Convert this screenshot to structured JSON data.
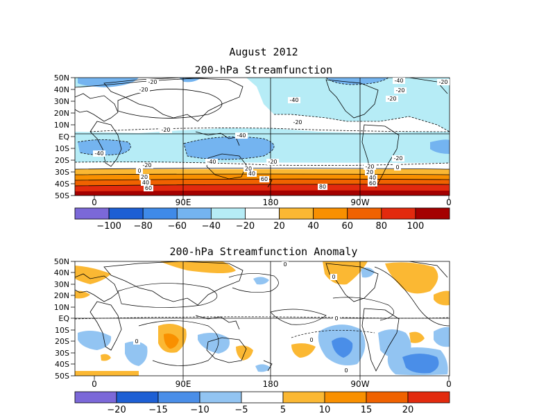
{
  "header": {
    "date": "August 2012",
    "panel1_title": "200-hPa Streamfunction",
    "panel2_title": "200-hPa Streamfunction Anomaly"
  },
  "axes": {
    "lat_labels": [
      "50N",
      "40N",
      "30N",
      "20N",
      "10N",
      "EQ",
      "10S",
      "20S",
      "30S",
      "40S",
      "50S"
    ],
    "lon_labels": [
      "0",
      "90E",
      "180",
      "90W",
      "0"
    ]
  },
  "panel1": {
    "colorbar": {
      "labels": [
        "-100",
        "-80",
        "-60",
        "-40",
        "-20",
        "20",
        "40",
        "60",
        "80",
        "100"
      ],
      "colors": [
        "#7b68d8",
        "#1d5fd4",
        "#3f8ae8",
        "#74b4f0",
        "#b6ecf6",
        "#ffffff",
        "#fbb833",
        "#f99000",
        "#f06200",
        "#e22a0e",
        "#a40000"
      ]
    },
    "contour_labels": [
      "-20",
      "-20",
      "-20",
      "-20",
      "-20",
      "-20",
      "-20",
      "-20",
      "-40",
      "-40",
      "-40",
      "-20",
      "-20",
      "-40",
      "-20",
      "-40",
      "0",
      "20",
      "40",
      "60",
      "80",
      "20",
      "40",
      "60",
      "0",
      "20",
      "40",
      "60"
    ]
  },
  "panel2": {
    "colorbar": {
      "labels": [
        "-20",
        "-15",
        "-10",
        "-5",
        "5",
        "10",
        "15",
        "20"
      ],
      "colors": [
        "#7b68d8",
        "#1d5fd4",
        "#4a8ee8",
        "#92c4f2",
        "#ffffff",
        "#fbb833",
        "#f99000",
        "#f06200",
        "#e22a0e"
      ]
    },
    "contour_labels": [
      "0",
      "0",
      "0",
      "0",
      "0",
      "0"
    ]
  }
}
